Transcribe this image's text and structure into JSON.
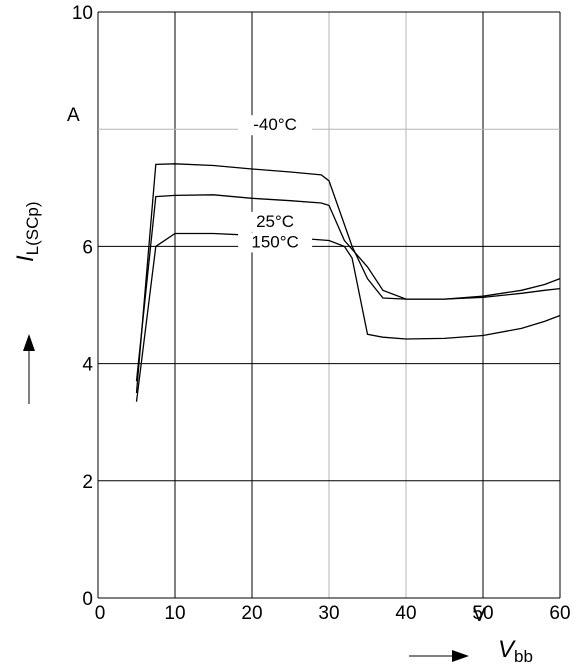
{
  "chart_data": {
    "type": "line",
    "title": "",
    "xlabel": {
      "main": "V",
      "sub": "bb"
    },
    "ylabel": {
      "main": "I",
      "sub": "L(SCp)"
    },
    "x_unit": "V",
    "y_unit": "A",
    "xlim": [
      0,
      60
    ],
    "ylim": [
      0,
      10
    ],
    "x_ticks": [
      "0",
      "10",
      "20",
      "30",
      "40",
      "50",
      "60"
    ],
    "y_ticks": [
      "0",
      "2",
      "4",
      "6",
      "10"
    ],
    "grid": true,
    "series": [
      {
        "name": "-40°C",
        "x": [
          5,
          7.5,
          10,
          15,
          20,
          25,
          29,
          30,
          33,
          35,
          37,
          40,
          45,
          50,
          55,
          58,
          60
        ],
        "y": [
          3.5,
          7.4,
          7.41,
          7.38,
          7.32,
          7.27,
          7.22,
          7.12,
          6.0,
          5.45,
          5.12,
          5.1,
          5.1,
          5.13,
          5.2,
          5.25,
          5.28
        ]
      },
      {
        "name": "25°C",
        "x": [
          5,
          7.5,
          10,
          15,
          20,
          25,
          29,
          30,
          32,
          35,
          37,
          40,
          45,
          50,
          55,
          58,
          60
        ],
        "y": [
          3.7,
          6.85,
          6.87,
          6.88,
          6.82,
          6.78,
          6.74,
          6.7,
          6.1,
          5.65,
          5.25,
          5.1,
          5.1,
          5.15,
          5.25,
          5.35,
          5.45
        ]
      },
      {
        "name": "150°C",
        "x": [
          5,
          7.5,
          10,
          15,
          20,
          25,
          30,
          32,
          33,
          35,
          37,
          40,
          45,
          50,
          55,
          58,
          60
        ],
        "y": [
          3.35,
          6.0,
          6.22,
          6.22,
          6.19,
          6.15,
          6.1,
          6.0,
          5.8,
          4.5,
          4.45,
          4.42,
          4.43,
          4.48,
          4.6,
          4.72,
          4.82
        ]
      }
    ]
  }
}
